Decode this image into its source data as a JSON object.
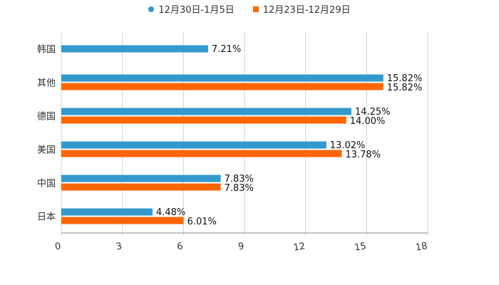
{
  "legend": {
    "series_a": "12月30日-1月5日",
    "series_b": "12月23日-12月29日"
  },
  "colors": {
    "series_a": "#3399CC",
    "series_b": "#FF6600",
    "grid": "#D3D3D3",
    "axis": "#888888"
  },
  "chart_data": {
    "type": "bar",
    "orientation": "horizontal",
    "categories": [
      "韩国",
      "其他",
      "德国",
      "美国",
      "中国",
      "日本"
    ],
    "series": [
      {
        "name": "12月30日-1月5日",
        "values": [
          7.21,
          15.82,
          14.25,
          13.02,
          7.83,
          4.48
        ],
        "labels": [
          "7.21%",
          "15.82%",
          "14.25%",
          "13.02%",
          "7.83%",
          "4.48%"
        ]
      },
      {
        "name": "12月23日-12月29日",
        "values": [
          null,
          15.82,
          14.0,
          13.78,
          7.83,
          6.01
        ],
        "labels": [
          "",
          "15.82%",
          "14.00%",
          "13.78%",
          "7.83%",
          "6.01%"
        ]
      }
    ],
    "xlim": [
      0,
      18
    ],
    "xticks": [
      "0",
      "3",
      "6",
      "9",
      "12",
      "15",
      "18"
    ],
    "grid": true,
    "legend_position": "top-center"
  }
}
